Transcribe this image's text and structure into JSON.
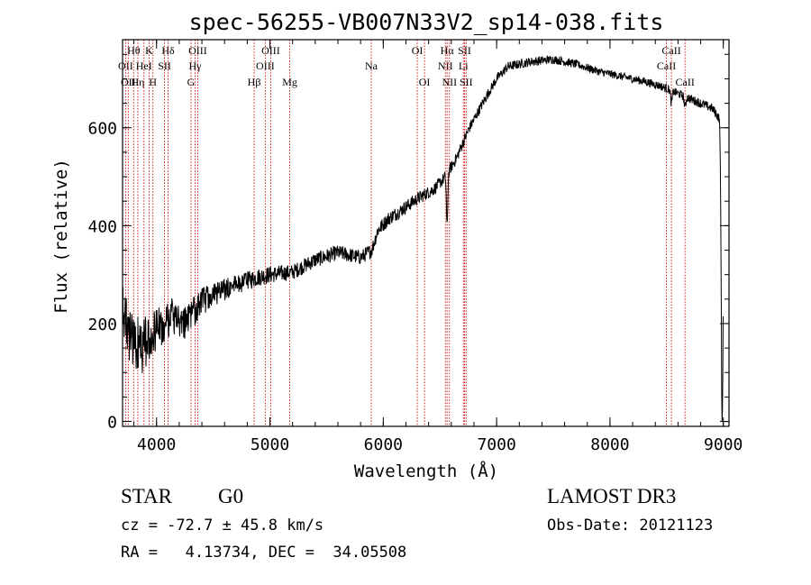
{
  "chart_data": {
    "type": "line",
    "title": "spec-56255-VB007N33V2_sp14-038.fits",
    "xlabel": "Wavelength (Å)",
    "ylabel": "Flux (relative)",
    "xlim": [
      3700,
      9050
    ],
    "ylim": [
      -10,
      780
    ],
    "xticks": [
      4000,
      5000,
      6000,
      7000,
      8000,
      9000
    ],
    "yticks": [
      0,
      200,
      400,
      600
    ],
    "x_minor_step": 200,
    "y_minor_step": 50,
    "line_color": "#000000",
    "marker_color": "#cc0000",
    "spectrum_anchor_points": [
      [
        3700,
        240
      ],
      [
        3760,
        180
      ],
      [
        3850,
        150
      ],
      [
        3950,
        170
      ],
      [
        4050,
        200
      ],
      [
        4150,
        215
      ],
      [
        4250,
        200
      ],
      [
        4300,
        215
      ],
      [
        4400,
        245
      ],
      [
        4500,
        258
      ],
      [
        4700,
        280
      ],
      [
        4900,
        295
      ],
      [
        5000,
        300
      ],
      [
        5200,
        305
      ],
      [
        5400,
        330
      ],
      [
        5600,
        345
      ],
      [
        5800,
        335
      ],
      [
        5900,
        350
      ],
      [
        5950,
        390
      ],
      [
        6050,
        415
      ],
      [
        6150,
        430
      ],
      [
        6300,
        455
      ],
      [
        6450,
        475
      ],
      [
        6550,
        500
      ],
      [
        6650,
        540
      ],
      [
        6750,
        595
      ],
      [
        6900,
        660
      ],
      [
        7000,
        700
      ],
      [
        7100,
        725
      ],
      [
        7300,
        735
      ],
      [
        7500,
        740
      ],
      [
        7700,
        730
      ],
      [
        7900,
        715
      ],
      [
        8100,
        705
      ],
      [
        8300,
        695
      ],
      [
        8450,
        685
      ],
      [
        8600,
        670
      ],
      [
        8750,
        655
      ],
      [
        8900,
        640
      ],
      [
        8980,
        615
      ]
    ],
    "spectrum_noise": [
      [
        3700,
        55
      ],
      [
        3850,
        60
      ],
      [
        4000,
        50
      ],
      [
        4200,
        35
      ],
      [
        4400,
        28
      ],
      [
        4700,
        20
      ],
      [
        5200,
        16
      ],
      [
        6000,
        15
      ],
      [
        6600,
        12
      ],
      [
        7000,
        10
      ],
      [
        8000,
        8
      ],
      [
        9000,
        10
      ]
    ],
    "spectrum_dips": [
      {
        "x": 6563,
        "depth": 110,
        "width": 8
      },
      {
        "x": 8990,
        "depth": 620,
        "width": 12
      },
      {
        "x": 8542,
        "depth": 25,
        "width": 10
      },
      {
        "x": 8662,
        "depth": 22,
        "width": 10
      }
    ],
    "line_markers": [
      {
        "wavelength": 3727,
        "label": "OII",
        "tier": 2
      },
      {
        "wavelength": 3750,
        "label": "OII",
        "tier": 3
      },
      {
        "wavelength": 3798,
        "label": "Hθ",
        "tier": 1
      },
      {
        "wavelength": 3835,
        "label": "Hη",
        "tier": 3
      },
      {
        "wavelength": 3889,
        "label": "HeI",
        "tier": 2
      },
      {
        "wavelength": 3934,
        "label": "K",
        "tier": 1
      },
      {
        "wavelength": 3968,
        "label": "H",
        "tier": 3
      },
      {
        "wavelength": 4070,
        "label": "SII",
        "tier": 2
      },
      {
        "wavelength": 4102,
        "label": "Hδ",
        "tier": 1
      },
      {
        "wavelength": 4304,
        "label": "G",
        "tier": 3
      },
      {
        "wavelength": 4340,
        "label": "Hγ",
        "tier": 2
      },
      {
        "wavelength": 4363,
        "label": "OIII",
        "tier": 1
      },
      {
        "wavelength": 4861,
        "label": "Hβ",
        "tier": 3
      },
      {
        "wavelength": 4959,
        "label": "OIII",
        "tier": 2
      },
      {
        "wavelength": 5007,
        "label": "OIII",
        "tier": 1
      },
      {
        "wavelength": 5175,
        "label": "Mg",
        "tier": 3
      },
      {
        "wavelength": 5894,
        "label": "Na",
        "tier": 2
      },
      {
        "wavelength": 6300,
        "label": "OI",
        "tier": 1
      },
      {
        "wavelength": 6364,
        "label": "OI",
        "tier": 3
      },
      {
        "wavelength": 6548,
        "label": "NII",
        "tier": 2
      },
      {
        "wavelength": 6563,
        "label": "Hα",
        "tier": 1
      },
      {
        "wavelength": 6584,
        "label": "NII",
        "tier": 3
      },
      {
        "wavelength": 6707,
        "label": "Li",
        "tier": 2
      },
      {
        "wavelength": 6717,
        "label": "SII",
        "tier": 1
      },
      {
        "wavelength": 6731,
        "label": "SII",
        "tier": 3
      },
      {
        "wavelength": 8498,
        "label": "CaII",
        "tier": 2
      },
      {
        "wavelength": 8542,
        "label": "CaII",
        "tier": 1
      },
      {
        "wavelength": 8662,
        "label": "CaII",
        "tier": 3
      }
    ]
  },
  "info": {
    "object_class": "STAR",
    "subclass": "G0",
    "survey": "LAMOST DR3",
    "redshift": "cz = -72.7 ± 45.8 km/s",
    "obs_date": "Obs-Date: 20121123",
    "coords": "RA =   4.13734, DEC =  34.05508"
  }
}
